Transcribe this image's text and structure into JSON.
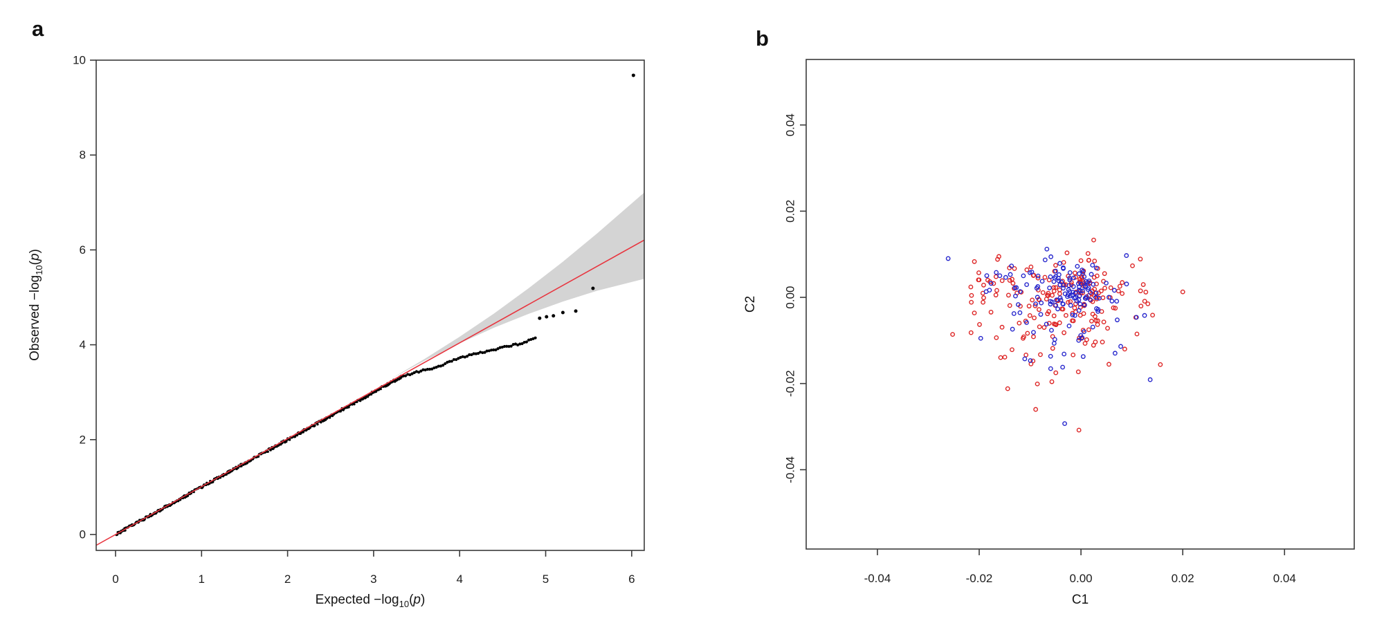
{
  "figure": {
    "background": "#ffffff",
    "panel_count": 2
  },
  "chart_data": [
    {
      "panel_label": "a",
      "type": "scatter",
      "subtype": "qq-plot",
      "xlabel_parts": {
        "pre": "Expected ",
        "log": "−log",
        "sub": "10",
        "open": "(",
        "var": "p",
        "close": ")"
      },
      "ylabel_parts": {
        "pre": "Observed ",
        "log": "−log",
        "sub": "10",
        "open": "(",
        "var": "p",
        "close": ")"
      },
      "xlim": [
        -0.225,
        6.146
      ],
      "ylim": [
        -0.335,
        10.0
      ],
      "xticks": [
        {
          "v": 0,
          "label": "0"
        },
        {
          "v": 1,
          "label": "1"
        },
        {
          "v": 2,
          "label": "2"
        },
        {
          "v": 3,
          "label": "3"
        },
        {
          "v": 4,
          "label": "4"
        },
        {
          "v": 5,
          "label": "5"
        },
        {
          "v": 6,
          "label": "6"
        }
      ],
      "yticks": [
        {
          "v": 0,
          "label": "0"
        },
        {
          "v": 2,
          "label": "2"
        },
        {
          "v": 4,
          "label": "4"
        },
        {
          "v": 6,
          "label": "6"
        },
        {
          "v": 8,
          "label": "8"
        },
        {
          "v": 10,
          "label": "10"
        }
      ],
      "grid": false,
      "legend": null,
      "point_color": "#000000",
      "frame_color": "#3a3a3a",
      "reference_line": {
        "slope": 1.01,
        "intercept": 0,
        "color": "#e8353f",
        "width": 1.6
      },
      "confidence_band": {
        "color": "#d4d4d4",
        "upper": [
          [
            3.2,
            3.28
          ],
          [
            3.6,
            3.71
          ],
          [
            4.0,
            4.17
          ],
          [
            4.4,
            4.66
          ],
          [
            4.8,
            5.19
          ],
          [
            5.2,
            5.75
          ],
          [
            5.6,
            6.35
          ],
          [
            6.146,
            7.21
          ]
        ],
        "lower": [
          [
            3.2,
            3.28
          ],
          [
            3.6,
            3.67
          ],
          [
            4.0,
            4.03
          ],
          [
            4.4,
            4.36
          ],
          [
            4.8,
            4.65
          ],
          [
            5.2,
            4.91
          ],
          [
            5.6,
            5.14
          ],
          [
            6.146,
            5.39
          ]
        ]
      },
      "dense_diagonal": {
        "x_start": 0.01,
        "x_end": 3.32,
        "count": 420,
        "jitter": 0.028,
        "radius": 1.7,
        "seed": 911
      },
      "shelf_trail": {
        "count": 62,
        "jitter": 0.018,
        "radius": 2.1,
        "seed": 515,
        "polyline": [
          [
            3.32,
            3.33
          ],
          [
            3.5,
            3.42
          ],
          [
            3.65,
            3.49
          ],
          [
            3.8,
            3.58
          ],
          [
            3.95,
            3.69
          ],
          [
            4.1,
            3.77
          ],
          [
            4.25,
            3.83
          ],
          [
            4.4,
            3.9
          ],
          [
            4.55,
            3.97
          ],
          [
            4.72,
            4.03
          ],
          [
            4.88,
            4.14
          ]
        ]
      },
      "tail_points": [
        [
          4.93,
          4.56
        ],
        [
          5.01,
          4.59
        ],
        [
          5.09,
          4.61
        ],
        [
          5.2,
          4.68
        ],
        [
          5.35,
          4.71
        ],
        [
          5.55,
          5.19
        ],
        [
          6.02,
          9.68
        ]
      ],
      "tail_radius": 2.5
    },
    {
      "panel_label": "b",
      "type": "scatter",
      "subtype": "pca-components",
      "xlabel": "C1",
      "ylabel": "C2",
      "xlim": [
        -0.054,
        0.0537
      ],
      "ylim": [
        -0.0584,
        0.0552
      ],
      "xticks": [
        {
          "v": -0.04,
          "label": "-0.04"
        },
        {
          "v": -0.02,
          "label": "-0.02"
        },
        {
          "v": 0,
          "label": "0.00"
        },
        {
          "v": 0.02,
          "label": "0.02"
        },
        {
          "v": 0.04,
          "label": "0.04"
        }
      ],
      "yticks": [
        {
          "v": 0.04,
          "label": "0.04"
        },
        {
          "v": 0.02,
          "label": "0.02"
        },
        {
          "v": 0,
          "label": "0.00"
        },
        {
          "v": -0.02,
          "label": "-0.02"
        },
        {
          "v": -0.04,
          "label": "-0.04"
        }
      ],
      "grid": false,
      "legend": null,
      "frame_color": "#3a3a3a",
      "marker": "open-circle",
      "marker_radius": 2.7,
      "marker_stroke_width": 1.4,
      "series": [
        {
          "name": "red-group",
          "color": "#dd2222",
          "seed": 1337,
          "clusters": [
            {
              "n": 70,
              "cx": 0.0005,
              "cy": 0.002,
              "sx": 0.005,
              "sy": 0.004
            },
            {
              "n": 90,
              "cx": -0.004,
              "cy": -0.0005,
              "sx": 0.008,
              "sy": 0.0052
            },
            {
              "n": 22,
              "cx": -0.0125,
              "cy": 0.0045,
              "sx": 0.004,
              "sy": 0.0025
            },
            {
              "n": 28,
              "cx": -0.004,
              "cy": -0.011,
              "sx": 0.0055,
              "sy": 0.0045
            }
          ],
          "outliers": [
            [
              -0.0216,
              -0.0082
            ],
            [
              -0.0144,
              -0.0212
            ],
            [
              -0.0089,
              -0.026
            ],
            [
              -0.0004,
              -0.0308
            ],
            [
              0.0156,
              -0.0156
            ],
            [
              0.0086,
              -0.012
            ],
            [
              0.0025,
              0.0133
            ],
            [
              0.011,
              -0.0085
            ]
          ]
        },
        {
          "name": "blue-group",
          "color": "#2424cc",
          "seed": 4242,
          "clusters": [
            {
              "n": 60,
              "cx": -0.0005,
              "cy": 0.002,
              "sx": 0.0035,
              "sy": 0.0028
            },
            {
              "n": 50,
              "cx": -0.003,
              "cy": 0.0,
              "sx": 0.0075,
              "sy": 0.005
            },
            {
              "n": 20,
              "cx": -0.013,
              "cy": 0.0035,
              "sx": 0.0045,
              "sy": 0.003
            },
            {
              "n": 16,
              "cx": -0.0035,
              "cy": -0.0105,
              "sx": 0.006,
              "sy": 0.0045
            }
          ],
          "outliers": [
            [
              -0.0261,
              0.009
            ],
            [
              -0.0197,
              -0.0095
            ],
            [
              0.0136,
              -0.0191
            ],
            [
              -0.0032,
              -0.0293
            ],
            [
              -0.0067,
              0.0112
            ],
            [
              0.0125,
              -0.0042
            ]
          ]
        }
      ]
    }
  ]
}
